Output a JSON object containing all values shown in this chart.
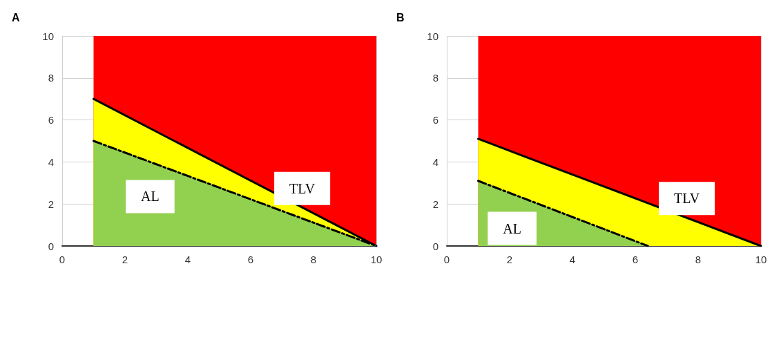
{
  "chart_data": [
    {
      "type": "area",
      "title": "A",
      "xlim": [
        0,
        10
      ],
      "ylim": [
        0,
        10
      ],
      "xticks": [
        0,
        2,
        4,
        6,
        8,
        10
      ],
      "yticks": [
        0,
        2,
        4,
        6,
        8,
        10
      ],
      "grid": true,
      "marker": "none",
      "bands": [
        {
          "axis": "x",
          "from": 1,
          "to": 10,
          "color": "#ff0000"
        }
      ],
      "series": [
        {
          "name": "TLV",
          "color": "#ffff00",
          "x": [
            1,
            10
          ],
          "values": [
            7,
            0
          ],
          "line_style": "solid"
        },
        {
          "name": "AL",
          "color": "#92d050",
          "x": [
            1,
            10
          ],
          "values": [
            5,
            0
          ],
          "line_style": "dashed"
        }
      ]
    },
    {
      "type": "area",
      "title": "B",
      "xlim": [
        0,
        10
      ],
      "ylim": [
        0,
        10
      ],
      "xticks": [
        0,
        2,
        4,
        6,
        8,
        10
      ],
      "yticks": [
        0,
        2,
        4,
        6,
        8,
        10
      ],
      "grid": true,
      "marker": "none",
      "bands": [
        {
          "axis": "x",
          "from": 1,
          "to": 10,
          "color": "#ff0000"
        }
      ],
      "series": [
        {
          "name": "TLV",
          "color": "#ffff00",
          "x": [
            1,
            10
          ],
          "values": [
            5.1,
            0
          ],
          "line_style": "solid"
        },
        {
          "name": "AL",
          "color": "#92d050",
          "x": [
            1,
            6.4
          ],
          "values": [
            3.1,
            0
          ],
          "line_style": "dashed"
        }
      ]
    }
  ]
}
